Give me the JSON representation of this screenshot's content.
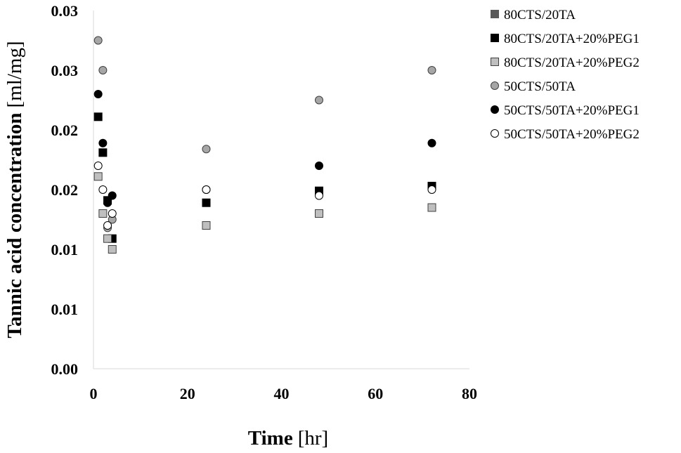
{
  "chart_data": {
    "type": "scatter",
    "title": "",
    "xlabel": {
      "bold": "Time",
      "rest": "[hr]"
    },
    "ylabel": {
      "bold": "Tannic acid concentration",
      "rest": "[ml/mg]"
    },
    "xlim": [
      0,
      80
    ],
    "ylim": [
      0,
      0.03
    ],
    "x_ticks": [
      0,
      20,
      40,
      60,
      80
    ],
    "x_tick_labels": [
      "0",
      "20",
      "40",
      "60",
      "80"
    ],
    "y_ticks": [
      0,
      0.005,
      0.01,
      0.015,
      0.02,
      0.025,
      0.03
    ],
    "y_tick_labels": [
      "0.00",
      "0.01",
      "0.01",
      "0.02",
      "0.02",
      "0.03",
      "0.03"
    ],
    "grid": false,
    "legend_position": "top-right",
    "series": [
      {
        "name": "80CTS/20TA",
        "marker": "square",
        "color": "#595959",
        "edge": "#595959",
        "points": []
      },
      {
        "name": "80CTS/20TA+20%PEG1",
        "marker": "square",
        "color": "#000000",
        "edge": "#000000",
        "points": [
          [
            1,
            0.0211
          ],
          [
            2,
            0.0181
          ],
          [
            3,
            0.0141
          ],
          [
            4,
            0.0109
          ],
          [
            24,
            0.0139
          ],
          [
            48,
            0.0149
          ],
          [
            72,
            0.0153
          ]
        ]
      },
      {
        "name": "80CTS/20TA+20%PEG2",
        "marker": "square",
        "color": "#bfbfbf",
        "edge": "#404040",
        "points": [
          [
            1,
            0.0161
          ],
          [
            2,
            0.013
          ],
          [
            3,
            0.0109
          ],
          [
            4,
            0.01
          ],
          [
            24,
            0.012
          ],
          [
            48,
            0.013
          ],
          [
            72,
            0.0135
          ]
        ]
      },
      {
        "name": "50CTS/50TA",
        "marker": "circle",
        "color": "#a6a6a6",
        "edge": "#404040",
        "points": [
          [
            1,
            0.0275
          ],
          [
            2,
            0.025
          ],
          [
            3,
            0.0118
          ],
          [
            4,
            0.0125
          ],
          [
            24,
            0.0184
          ],
          [
            48,
            0.0225
          ],
          [
            72,
            0.025
          ]
        ]
      },
      {
        "name": "50CTS/50TA+20%PEG1",
        "marker": "circle",
        "color": "#000000",
        "edge": "#000000",
        "points": [
          [
            1,
            0.023
          ],
          [
            2,
            0.0189
          ],
          [
            3,
            0.0139
          ],
          [
            4,
            0.0145
          ],
          [
            24,
            0.015
          ],
          [
            48,
            0.017
          ],
          [
            72,
            0.0189
          ]
        ]
      },
      {
        "name": "50CTS/50TA+20%PEG2",
        "marker": "circle",
        "color": "#ffffff",
        "edge": "#000000",
        "points": [
          [
            1,
            0.017
          ],
          [
            2,
            0.015
          ],
          [
            3,
            0.012
          ],
          [
            4,
            0.013
          ],
          [
            24,
            0.015
          ],
          [
            48,
            0.0145
          ],
          [
            72,
            0.015
          ]
        ]
      }
    ]
  }
}
